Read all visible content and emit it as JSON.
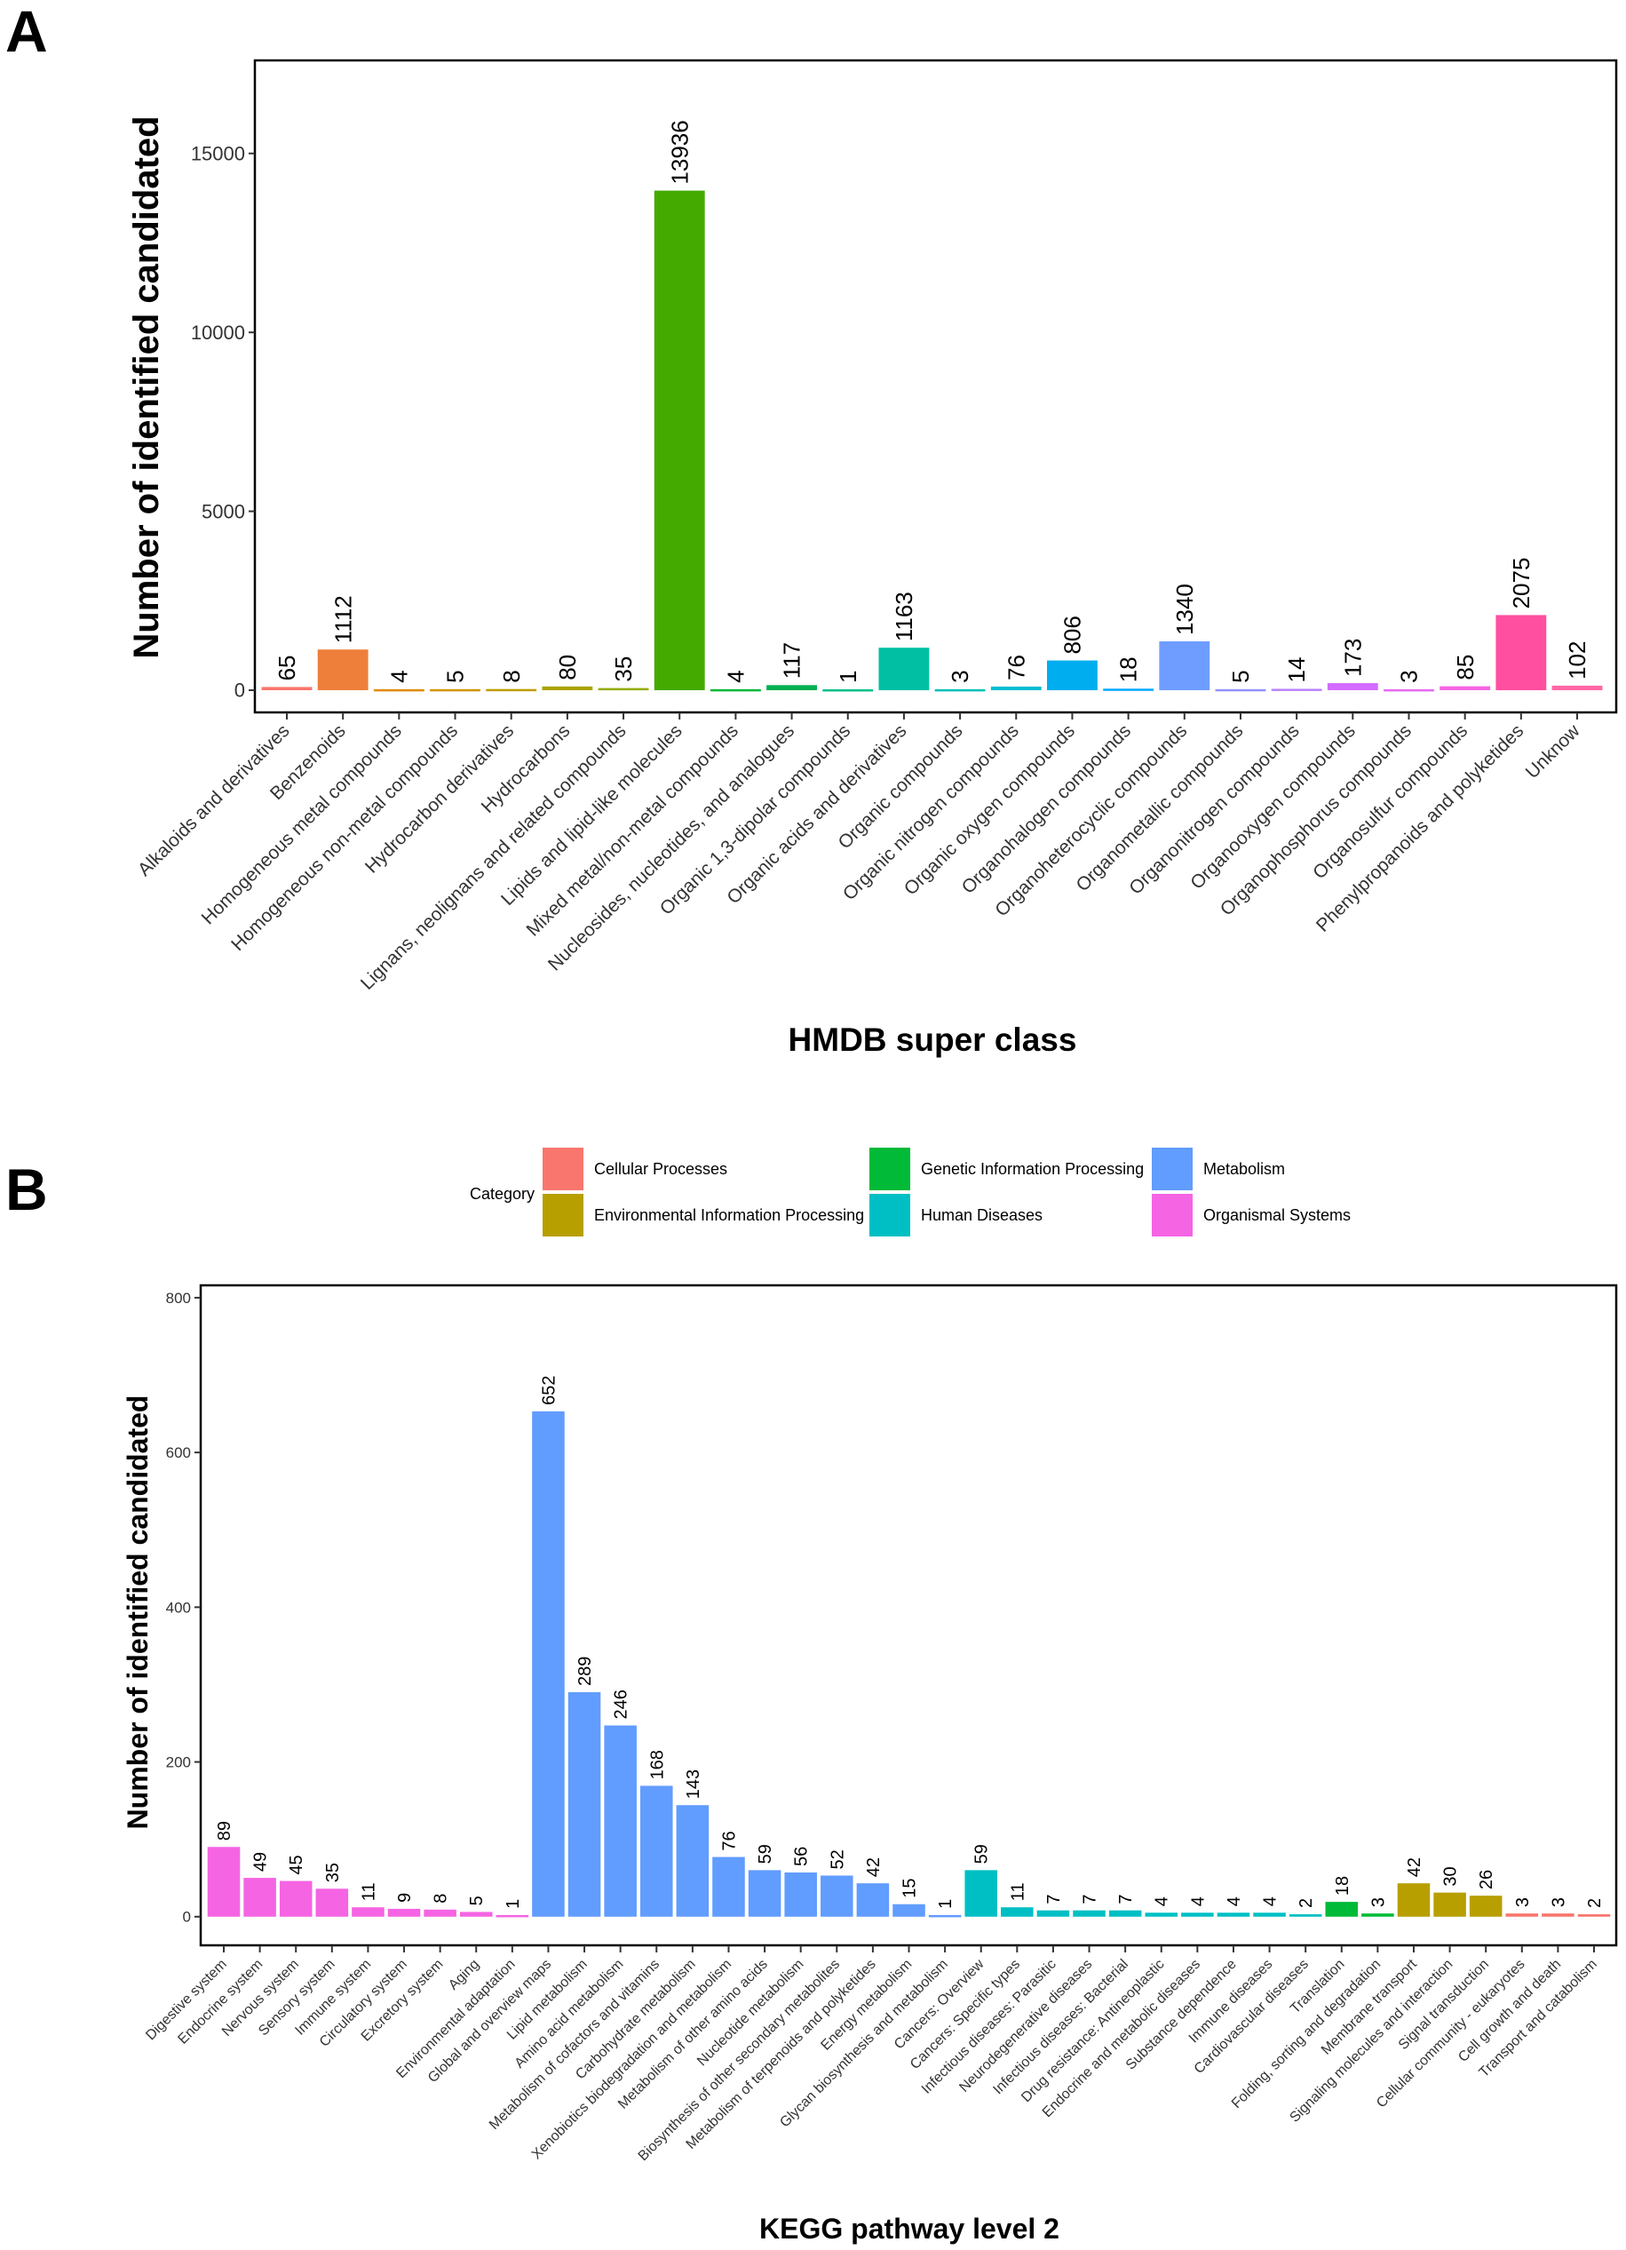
{
  "panel_labels": [
    "A",
    "B"
  ],
  "chart_data": [
    {
      "type": "bar",
      "panel": "A",
      "title": "",
      "xlabel": "HMDB super class",
      "ylabel": "Number of identified candidated",
      "ylim": [
        -620,
        17600
      ],
      "yticks": [
        0,
        5000,
        10000,
        15000
      ],
      "grid": false,
      "categories": [
        "Alkaloids and derivatives",
        "Benzenoids",
        "Homogeneous metal compounds",
        "Homogeneous non-metal compounds",
        "Hydrocarbon derivatives",
        "Hydrocarbons",
        "Lignans, neolignans and related compounds",
        "Lipids and lipid-like molecules",
        "Mixed metal/non-metal compounds",
        "Nucleosides, nucleotides, and analogues",
        "Organic 1,3-dipolar compounds",
        "Organic acids and derivatives",
        "Organic compounds",
        "Organic nitrogen compounds",
        "Organic oxygen compounds",
        "Organohalogen compounds",
        "Organoheterocyclic compounds",
        "Organometallic compounds",
        "Organonitrogen compounds",
        "Organooxygen compounds",
        "Organophosphorus compounds",
        "Organosulfur compounds",
        "Phenylpropanoids and polyketides",
        "Unknow"
      ],
      "values": [
        65,
        1112,
        4,
        5,
        8,
        80,
        35,
        13936,
        4,
        117,
        1,
        1163,
        3,
        76,
        806,
        18,
        1340,
        5,
        14,
        173,
        3,
        85,
        2075,
        102
      ],
      "colors": [
        "#F8766D",
        "#EE7F3A",
        "#E08B00",
        "#D09400",
        "#BE9C00",
        "#AAA300",
        "#93AA00",
        "#44AA00",
        "#00B935",
        "#00B050",
        "#00C08B",
        "#00BFA3",
        "#00C0B8",
        "#00BDD0",
        "#00AEEF",
        "#00A9FF",
        "#6F9CFF",
        "#9590FF",
        "#B983FF",
        "#D36BFF",
        "#E76BF3",
        "#F564E3",
        "#FF4FA0",
        "#FF67A4"
      ]
    },
    {
      "type": "bar",
      "panel": "B",
      "title": "",
      "xlabel": "KEGG pathway level 2",
      "ylabel": "Number of identified candidated",
      "ylim": [
        -37,
        816
      ],
      "yticks": [
        0,
        200,
        400,
        600,
        800
      ],
      "grid": false,
      "legend": {
        "title": "Category",
        "position": "top",
        "items": [
          {
            "name": "Cellular Processes",
            "color": "#F8766D"
          },
          {
            "name": "Environmental Information Processing",
            "color": "#B79F00"
          },
          {
            "name": "Genetic Information Processing",
            "color": "#00BA38"
          },
          {
            "name": "Human Diseases",
            "color": "#00BFC4"
          },
          {
            "name": "Metabolism",
            "color": "#619CFF"
          },
          {
            "name": "Organismal Systems",
            "color": "#F564E3"
          }
        ]
      },
      "categories": [
        "Digestive system",
        "Endocrine system",
        "Nervous system",
        "Sensory system",
        "Immune system",
        "Circulatory system",
        "Excretory system",
        "Aging",
        "Environmental adaptation",
        "Global and overview maps",
        "Lipid metabolism",
        "Amino acid metabolism",
        "Metabolism of cofactors and vitamins",
        "Carbohydrate metabolism",
        "Xenobiotics biodegradation and metabolism",
        "Metabolism of other amino acids",
        "Nucleotide metabolism",
        "Biosynthesis of other secondary metabolites",
        "Metabolism of terpenoids and polyketides",
        "Energy metabolism",
        "Glycan biosynthesis and metabolism",
        "Cancers: Overview",
        "Cancers: Specific types",
        "Infectious diseases: Parasitic",
        "Neurodegenerative diseases",
        "Infectious diseases: Bacterial",
        "Drug resistance: Antineoplastic",
        "Endocrine and metabolic diseases",
        "Substance dependence",
        "Immune diseases",
        "Cardiovascular diseases",
        "Translation",
        "Folding, sorting and degradation",
        "Membrane transport",
        "Signaling molecules and interaction",
        "Signal transduction",
        "Cellular community - eukaryotes",
        "Cell growth and death",
        "Transport and catabolism"
      ],
      "values": [
        89,
        49,
        45,
        35,
        11,
        9,
        8,
        5,
        1,
        652,
        289,
        246,
        168,
        143,
        76,
        59,
        56,
        52,
        42,
        15,
        1,
        59,
        11,
        7,
        7,
        7,
        4,
        4,
        4,
        4,
        2,
        18,
        3,
        42,
        30,
        26,
        3,
        3,
        2
      ],
      "category_of": [
        5,
        5,
        5,
        5,
        5,
        5,
        5,
        5,
        5,
        4,
        4,
        4,
        4,
        4,
        4,
        4,
        4,
        4,
        4,
        4,
        4,
        3,
        3,
        3,
        3,
        3,
        3,
        3,
        3,
        3,
        3,
        2,
        2,
        1,
        1,
        1,
        0,
        0,
        0
      ]
    }
  ]
}
